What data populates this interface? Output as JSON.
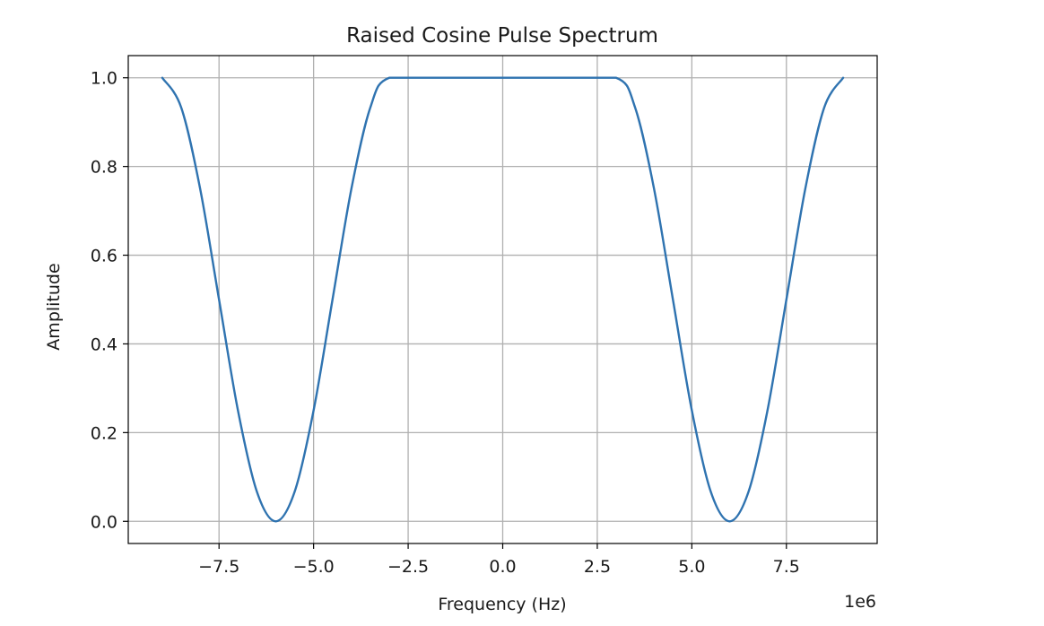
{
  "chart_data": {
    "type": "line",
    "title": "Raised Cosine Pulse Spectrum",
    "xlabel": "Frequency (Hz)",
    "ylabel": "Amplitude",
    "x_offset_text": "1e6",
    "xlim": [
      -9900000,
      9900000
    ],
    "ylim": [
      -0.05,
      1.05
    ],
    "grid": true,
    "xticks": [
      -7500000,
      -5000000,
      -2500000,
      0,
      2500000,
      5000000,
      7500000
    ],
    "xtick_labels": [
      "−7.5",
      "−5.0",
      "−2.5",
      "0.0",
      "2.5",
      "5.0",
      "7.5"
    ],
    "yticks": [
      0.0,
      0.2,
      0.4,
      0.6,
      0.8,
      1.0
    ],
    "ytick_labels": [
      "0.0",
      "0.2",
      "0.4",
      "0.6",
      "0.8",
      "1.0"
    ],
    "series": [
      {
        "color": "#2f73b0",
        "x": [
          -9000000,
          -8500000,
          -8000000,
          -7500000,
          -7000000,
          -6500000,
          -6000000,
          -5500000,
          -5000000,
          -4500000,
          -4000000,
          -3500000,
          -3000000,
          -1500000,
          0,
          1500000,
          3000000,
          3500000,
          4000000,
          4500000,
          5000000,
          5500000,
          6000000,
          6500000,
          7000000,
          7500000,
          8000000,
          8500000,
          9000000
        ],
        "y": [
          1.0,
          0.933,
          0.75,
          0.5,
          0.25,
          0.067,
          0.0,
          0.067,
          0.25,
          0.5,
          0.75,
          0.933,
          1.0,
          1.0,
          1.0,
          1.0,
          1.0,
          0.933,
          0.75,
          0.5,
          0.25,
          0.067,
          0.0,
          0.067,
          0.25,
          0.5,
          0.75,
          0.933,
          1.0
        ]
      }
    ]
  }
}
